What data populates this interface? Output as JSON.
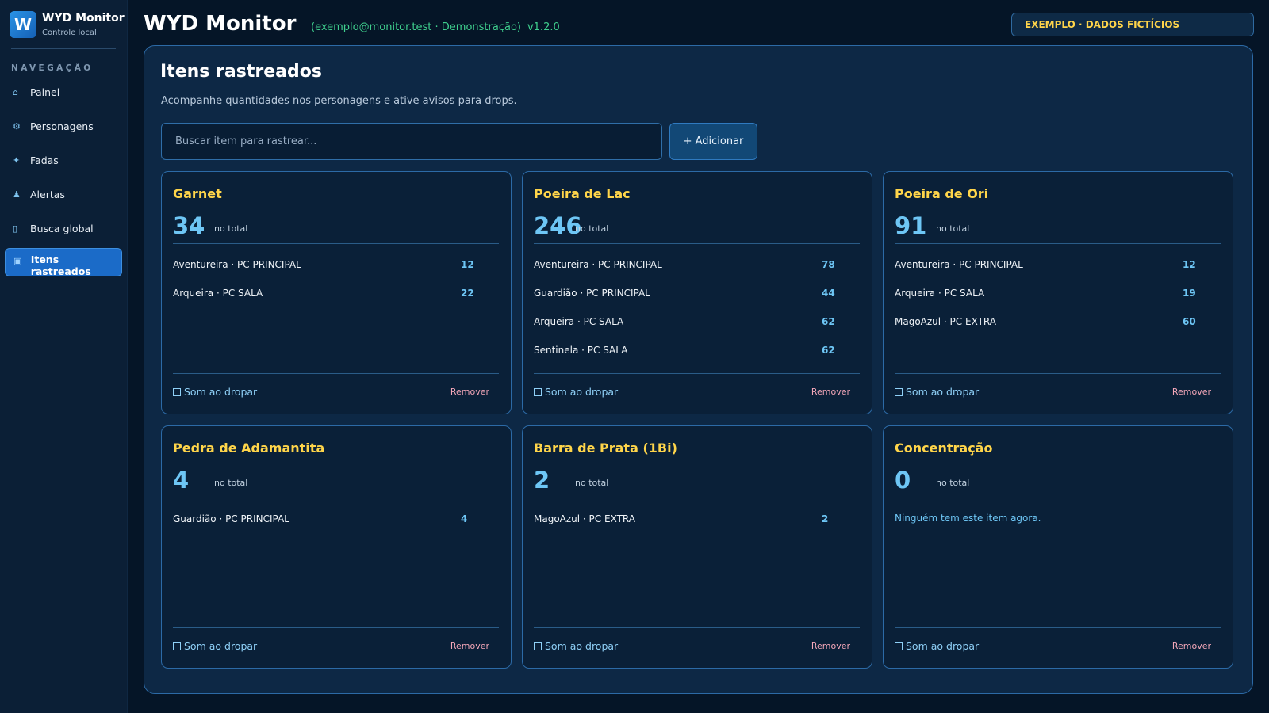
{
  "brand": {
    "logo": "W",
    "name": "WYD Monitor",
    "subtitle": "Controle local"
  },
  "nav": {
    "heading": "NAVEGAÇÃO",
    "items": [
      {
        "label": "Painel",
        "icon": "⌂"
      },
      {
        "label": "Personagens",
        "icon": "⚙"
      },
      {
        "label": "Fadas",
        "icon": "✦"
      },
      {
        "label": "Alertas",
        "icon": "♟"
      },
      {
        "label": "Busca global",
        "icon": "▯"
      },
      {
        "label": "Itens rastreados",
        "icon": "▣",
        "active": true
      }
    ]
  },
  "header": {
    "title": "WYD Monitor",
    "account": "(exemplo@monitor.test · Demonstração)",
    "version": "v1.2.0",
    "badge": "EXEMPLO · DADOS FICTÍCIOS"
  },
  "main": {
    "title": "Itens rastreados",
    "subtitle": "Acompanhe quantidades nos personagens e ative avisos para drops.",
    "search_placeholder": "Buscar item para rastrear...",
    "add_label": "+ Adicionar",
    "total_label": "no total",
    "sound_label": "Som ao dropar",
    "remove_label": "Remover",
    "empty_text": "Ninguém tem este item agora.",
    "cards": [
      {
        "name": "Garnet",
        "total": "34",
        "rows": [
          {
            "label": "Aventureira · PC PRINCIPAL",
            "count": "12"
          },
          {
            "label": "Arqueira · PC SALA",
            "count": "22"
          }
        ]
      },
      {
        "name": "Poeira de Lac",
        "total": "246",
        "rows": [
          {
            "label": "Aventureira · PC PRINCIPAL",
            "count": "78"
          },
          {
            "label": "Guardião · PC PRINCIPAL",
            "count": "44"
          },
          {
            "label": "Arqueira · PC SALA",
            "count": "62"
          },
          {
            "label": "Sentinela · PC SALA",
            "count": "62"
          }
        ]
      },
      {
        "name": "Poeira de Ori",
        "total": "91",
        "rows": [
          {
            "label": "Aventureira · PC PRINCIPAL",
            "count": "12"
          },
          {
            "label": "Arqueira · PC SALA",
            "count": "19"
          },
          {
            "label": "MagoAzul · PC EXTRA",
            "count": "60"
          }
        ]
      },
      {
        "name": "Pedra de Adamantita",
        "total": "4",
        "rows": [
          {
            "label": "Guardião · PC PRINCIPAL",
            "count": "4"
          }
        ]
      },
      {
        "name": "Barra de Prata (1Bi)",
        "total": "2",
        "rows": [
          {
            "label": "MagoAzul · PC EXTRA",
            "count": "2"
          }
        ]
      },
      {
        "name": "Concentração",
        "total": "0",
        "rows": []
      }
    ]
  }
}
